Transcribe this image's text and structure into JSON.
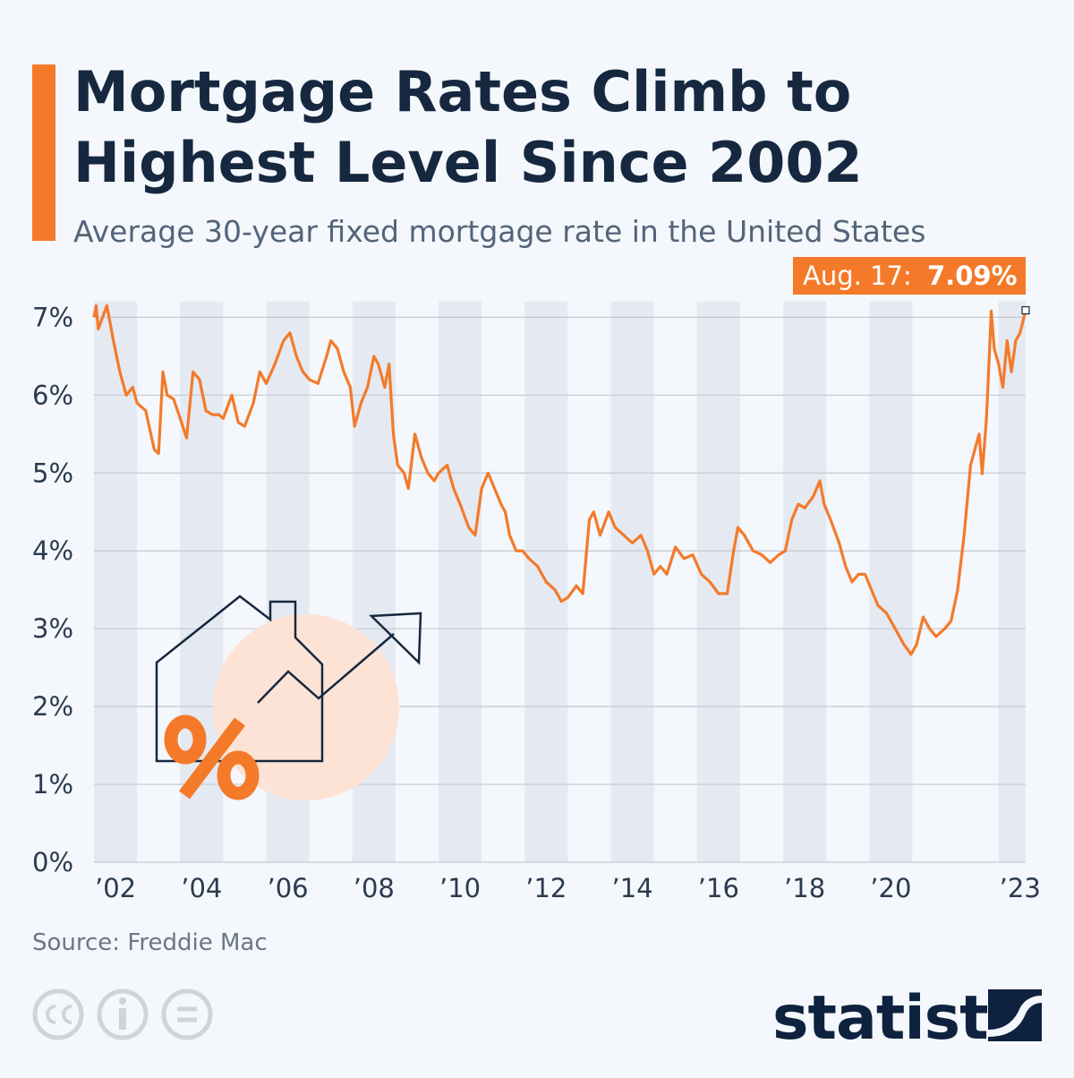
{
  "chart_data": {
    "type": "line",
    "title": [
      "Mortgage Rates Climb to",
      "Highest Level Since 2002"
    ],
    "subtitle": "Average 30-year fixed mortgage rate in the United States",
    "annotation": {
      "date_label": "Aug. 17:",
      "value_label": "7.09%"
    },
    "source": "Source: Freddie Mac",
    "brand": "statista",
    "color": "#f47a2a",
    "grid": true,
    "xlim": [
      2002,
      2023.63
    ],
    "ylim": [
      0,
      7.2
    ],
    "xticks": [
      {
        "value": 2002.5,
        "label": "’02"
      },
      {
        "value": 2004.5,
        "label": "’04"
      },
      {
        "value": 2006.5,
        "label": "’06"
      },
      {
        "value": 2008.5,
        "label": "’08"
      },
      {
        "value": 2010.5,
        "label": "’10"
      },
      {
        "value": 2012.5,
        "label": "’12"
      },
      {
        "value": 2014.5,
        "label": "’14"
      },
      {
        "value": 2016.5,
        "label": "’16"
      },
      {
        "value": 2018.5,
        "label": "’18"
      },
      {
        "value": 2020.5,
        "label": "’20"
      },
      {
        "value": 2023.5,
        "label": "’23"
      }
    ],
    "yticks": [
      {
        "value": 0,
        "label": "0%"
      },
      {
        "value": 1,
        "label": "1%"
      },
      {
        "value": 2,
        "label": "2%"
      },
      {
        "value": 3,
        "label": "3%"
      },
      {
        "value": 4,
        "label": "4%"
      },
      {
        "value": 5,
        "label": "5%"
      },
      {
        "value": 6,
        "label": "6%"
      },
      {
        "value": 7,
        "label": "7%"
      }
    ],
    "x": [
      2002.0,
      2002.05,
      2002.1,
      2002.3,
      2002.45,
      2002.6,
      2002.75,
      2002.9,
      2003.0,
      2003.2,
      2003.4,
      2003.5,
      2003.6,
      2003.7,
      2003.85,
      2004.0,
      2004.15,
      2004.3,
      2004.45,
      2004.6,
      2004.75,
      2004.9,
      2005.0,
      2005.2,
      2005.35,
      2005.5,
      2005.7,
      2005.85,
      2006.0,
      2006.2,
      2006.4,
      2006.55,
      2006.7,
      2006.85,
      2007.0,
      2007.2,
      2007.4,
      2007.5,
      2007.65,
      2007.8,
      2007.95,
      2008.05,
      2008.2,
      2008.35,
      2008.5,
      2008.6,
      2008.75,
      2008.85,
      2008.95,
      2009.05,
      2009.2,
      2009.3,
      2009.45,
      2009.6,
      2009.75,
      2009.9,
      2010.0,
      2010.2,
      2010.35,
      2010.5,
      2010.7,
      2010.85,
      2011.0,
      2011.15,
      2011.3,
      2011.45,
      2011.55,
      2011.65,
      2011.8,
      2011.95,
      2012.1,
      2012.3,
      2012.5,
      2012.7,
      2012.85,
      2013.0,
      2013.2,
      2013.35,
      2013.5,
      2013.6,
      2013.75,
      2013.95,
      2014.1,
      2014.3,
      2014.5,
      2014.7,
      2014.85,
      2015.0,
      2015.15,
      2015.3,
      2015.5,
      2015.7,
      2015.9,
      2016.1,
      2016.3,
      2016.5,
      2016.7,
      2016.85,
      2016.95,
      2017.1,
      2017.3,
      2017.5,
      2017.7,
      2017.9,
      2018.05,
      2018.2,
      2018.35,
      2018.5,
      2018.7,
      2018.85,
      2018.95,
      2019.1,
      2019.3,
      2019.45,
      2019.6,
      2019.75,
      2019.9,
      2020.05,
      2020.2,
      2020.4,
      2020.6,
      2020.8,
      2020.97,
      2021.1,
      2021.25,
      2021.4,
      2021.55,
      2021.75,
      2021.9,
      2022.05,
      2022.2,
      2022.35,
      2022.45,
      2022.55,
      2022.62,
      2022.72,
      2022.8,
      2022.83,
      2022.9,
      2023.0,
      2023.1,
      2023.2,
      2023.3,
      2023.4,
      2023.5,
      2023.63
    ],
    "values": [
      7.0,
      7.15,
      6.85,
      7.15,
      6.7,
      6.3,
      6.0,
      6.1,
      5.9,
      5.8,
      5.3,
      5.25,
      6.3,
      6.0,
      5.95,
      5.7,
      5.45,
      6.3,
      6.2,
      5.8,
      5.75,
      5.75,
      5.7,
      6.0,
      5.65,
      5.6,
      5.9,
      6.3,
      6.15,
      6.4,
      6.7,
      6.8,
      6.5,
      6.3,
      6.2,
      6.15,
      6.5,
      6.7,
      6.6,
      6.3,
      6.1,
      5.6,
      5.9,
      6.1,
      6.5,
      6.4,
      6.1,
      6.4,
      5.5,
      5.1,
      5.0,
      4.8,
      5.5,
      5.2,
      5.0,
      4.9,
      5.0,
      5.1,
      4.8,
      4.6,
      4.3,
      4.2,
      4.8,
      5.0,
      4.8,
      4.6,
      4.5,
      4.2,
      4.0,
      4.0,
      3.9,
      3.8,
      3.6,
      3.5,
      3.35,
      3.4,
      3.55,
      3.45,
      4.4,
      4.5,
      4.2,
      4.5,
      4.3,
      4.2,
      4.1,
      4.2,
      4.0,
      3.7,
      3.8,
      3.7,
      4.05,
      3.9,
      3.95,
      3.7,
      3.6,
      3.45,
      3.45,
      4.0,
      4.3,
      4.2,
      4.0,
      3.95,
      3.85,
      3.95,
      4.0,
      4.4,
      4.6,
      4.55,
      4.7,
      4.9,
      4.6,
      4.4,
      4.1,
      3.8,
      3.6,
      3.7,
      3.7,
      3.5,
      3.3,
      3.2,
      3.0,
      2.8,
      2.67,
      2.8,
      3.15,
      3.0,
      2.9,
      3.0,
      3.1,
      3.5,
      4.2,
      5.1,
      5.3,
      5.5,
      4.99,
      5.7,
      6.7,
      7.08,
      6.6,
      6.4,
      6.1,
      6.7,
      6.3,
      6.7,
      6.8,
      7.09
    ]
  }
}
